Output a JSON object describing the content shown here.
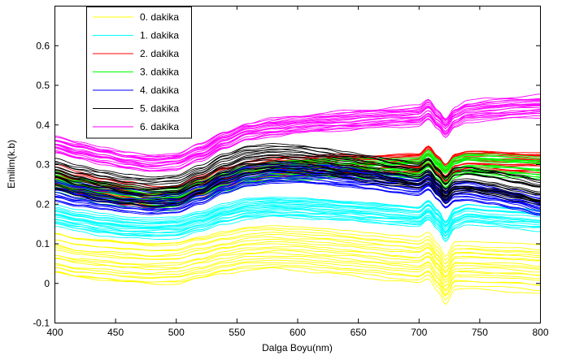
{
  "chart_data": {
    "type": "line",
    "title": "",
    "xlabel": "Dalga Boyu(nm)",
    "ylabel": "Emilim(k.b)",
    "xlim": [
      400,
      800
    ],
    "ylim": [
      -0.1,
      0.7
    ],
    "xticks": [
      400,
      450,
      500,
      550,
      600,
      650,
      700,
      750,
      800
    ],
    "yticks": [
      -0.1,
      0,
      0.1,
      0.2,
      0.3,
      0.4,
      0.5,
      0.6
    ],
    "ytick_labels": [
      "-0.1",
      "0",
      "0.1",
      "0.2",
      "0.3",
      "0.4",
      "0.5",
      "0.6"
    ],
    "grid": false,
    "legend_position": "top-left",
    "curves_per_series": 20,
    "x": [
      400,
      420,
      440,
      460,
      480,
      500,
      520,
      540,
      560,
      580,
      600,
      620,
      640,
      660,
      680,
      700,
      708,
      716,
      722,
      730,
      740,
      760,
      780,
      800
    ],
    "series": [
      {
        "name": "0. dakika",
        "color": "#ffff00",
        "spread": 0.11,
        "values": [
          0.075,
          0.063,
          0.058,
          0.052,
          0.048,
          0.05,
          0.063,
          0.077,
          0.087,
          0.09,
          0.087,
          0.082,
          0.076,
          0.07,
          0.063,
          0.058,
          0.07,
          0.04,
          0.008,
          0.045,
          0.045,
          0.042,
          0.04,
          0.035
        ]
      },
      {
        "name": "1. dakika",
        "color": "#00ffff",
        "spread": 0.05,
        "values": [
          0.17,
          0.158,
          0.148,
          0.14,
          0.138,
          0.14,
          0.155,
          0.175,
          0.188,
          0.192,
          0.19,
          0.186,
          0.182,
          0.178,
          0.173,
          0.168,
          0.185,
          0.16,
          0.13,
          0.165,
          0.175,
          0.17,
          0.165,
          0.16
        ]
      },
      {
        "name": "2. dakika",
        "color": "#ff0000",
        "spread": 0.05,
        "values": [
          0.265,
          0.248,
          0.235,
          0.224,
          0.215,
          0.218,
          0.24,
          0.265,
          0.282,
          0.29,
          0.295,
          0.298,
          0.3,
          0.3,
          0.302,
          0.303,
          0.325,
          0.3,
          0.28,
          0.305,
          0.31,
          0.31,
          0.308,
          0.305
        ]
      },
      {
        "name": "3. dakika",
        "color": "#00ff00",
        "spread": 0.05,
        "values": [
          0.255,
          0.24,
          0.228,
          0.218,
          0.21,
          0.212,
          0.232,
          0.255,
          0.272,
          0.28,
          0.285,
          0.288,
          0.29,
          0.29,
          0.29,
          0.29,
          0.31,
          0.287,
          0.268,
          0.292,
          0.3,
          0.298,
          0.295,
          0.29
        ]
      },
      {
        "name": "4. dakika",
        "color": "#0000ff",
        "spread": 0.05,
        "values": [
          0.235,
          0.222,
          0.213,
          0.206,
          0.2,
          0.203,
          0.226,
          0.252,
          0.27,
          0.278,
          0.278,
          0.274,
          0.268,
          0.26,
          0.252,
          0.245,
          0.258,
          0.232,
          0.212,
          0.23,
          0.232,
          0.222,
          0.21,
          0.195
        ]
      },
      {
        "name": "5. dakika",
        "color": "#000000",
        "spread": 0.07,
        "values": [
          0.275,
          0.258,
          0.246,
          0.236,
          0.23,
          0.235,
          0.26,
          0.29,
          0.31,
          0.316,
          0.313,
          0.306,
          0.297,
          0.288,
          0.278,
          0.27,
          0.283,
          0.256,
          0.235,
          0.258,
          0.26,
          0.252,
          0.24,
          0.228
        ]
      },
      {
        "name": "6. dakika",
        "color": "#ff00ff",
        "spread": 0.045,
        "values": [
          0.35,
          0.335,
          0.322,
          0.31,
          0.302,
          0.306,
          0.33,
          0.36,
          0.382,
          0.393,
          0.4,
          0.405,
          0.41,
          0.414,
          0.418,
          0.422,
          0.438,
          0.412,
          0.39,
          0.418,
          0.432,
          0.438,
          0.442,
          0.445
        ]
      }
    ]
  }
}
